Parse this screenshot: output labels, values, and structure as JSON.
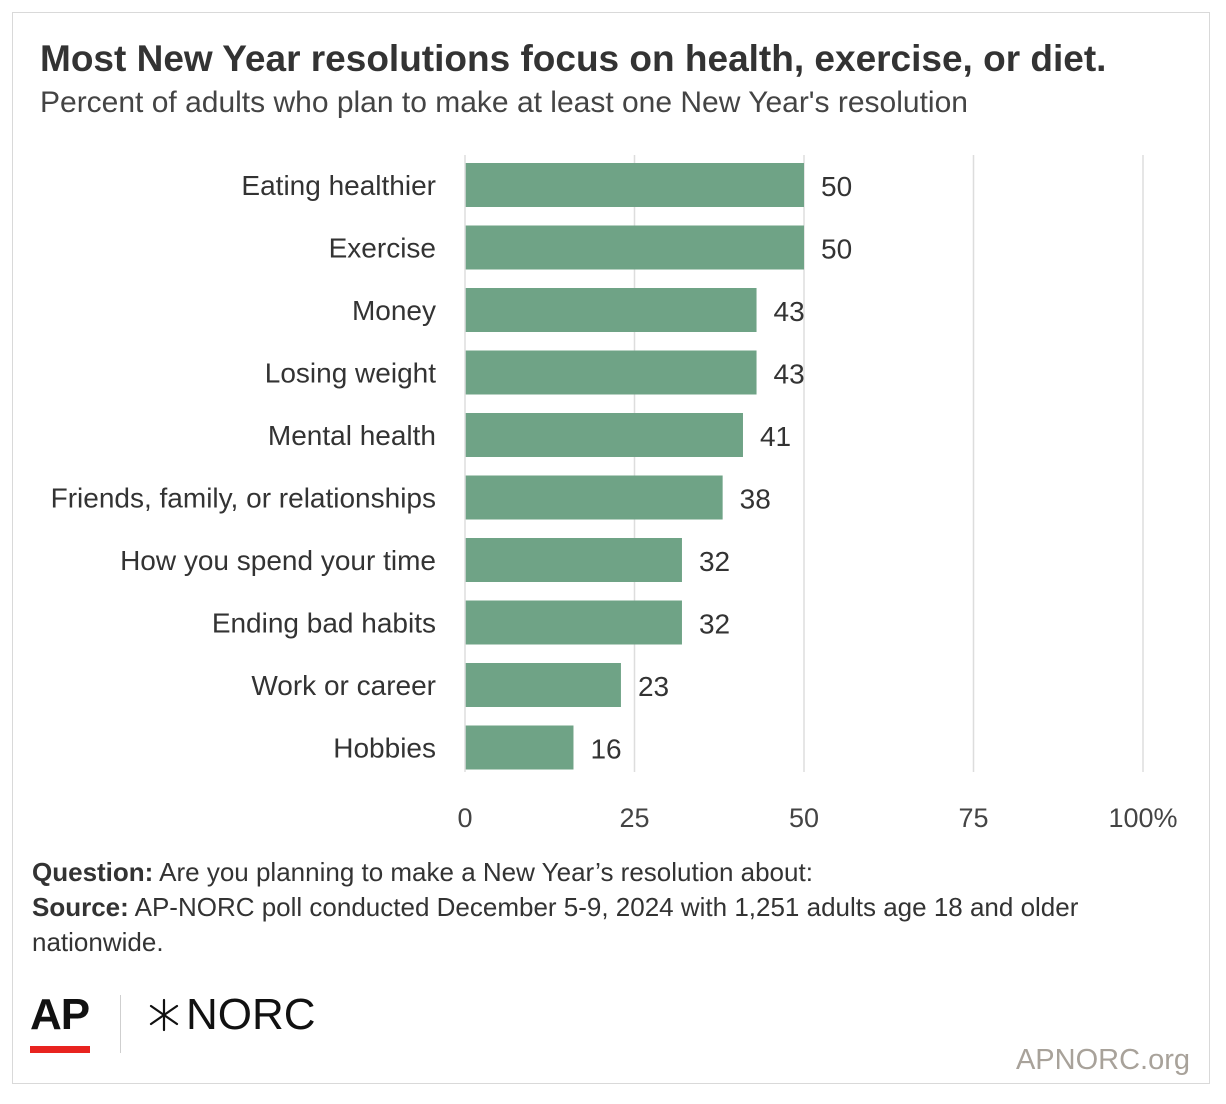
{
  "title": "Most New Year resolutions focus on health, exercise, or diet.",
  "subtitle": "Percent of adults who plan to make at least one New Year's resolution",
  "colors": {
    "bar": "#6fa386",
    "grid": "#dddddd",
    "text": "#333333",
    "ap_red": "#e8231f",
    "site": "#a8a29a"
  },
  "chart_data": {
    "type": "bar",
    "orientation": "horizontal",
    "categories": [
      "Eating healthier",
      "Exercise",
      "Money",
      "Losing weight",
      "Mental health",
      "Friends, family, or relationships",
      "How you spend your time",
      "Ending bad habits",
      "Work or career",
      "Hobbies"
    ],
    "values": [
      50,
      50,
      43,
      43,
      41,
      38,
      32,
      32,
      23,
      16
    ],
    "xlim": [
      0,
      100
    ],
    "xticks": [
      "0",
      "25",
      "50",
      "75",
      "100%"
    ],
    "grid": true,
    "data_labels": true
  },
  "footnote": {
    "question_label": "Question:",
    "question_text": " Are you planning to make a New Year’s resolution about:",
    "source_label": "Source:",
    "source_text": " AP-NORC poll conducted December 5-9, 2024 with 1,251 adults age 18 and older nationwide."
  },
  "logos": {
    "ap": "AP",
    "norc": "NORC",
    "norc_icon": "norc-star-icon"
  },
  "site": "APNORC.org"
}
